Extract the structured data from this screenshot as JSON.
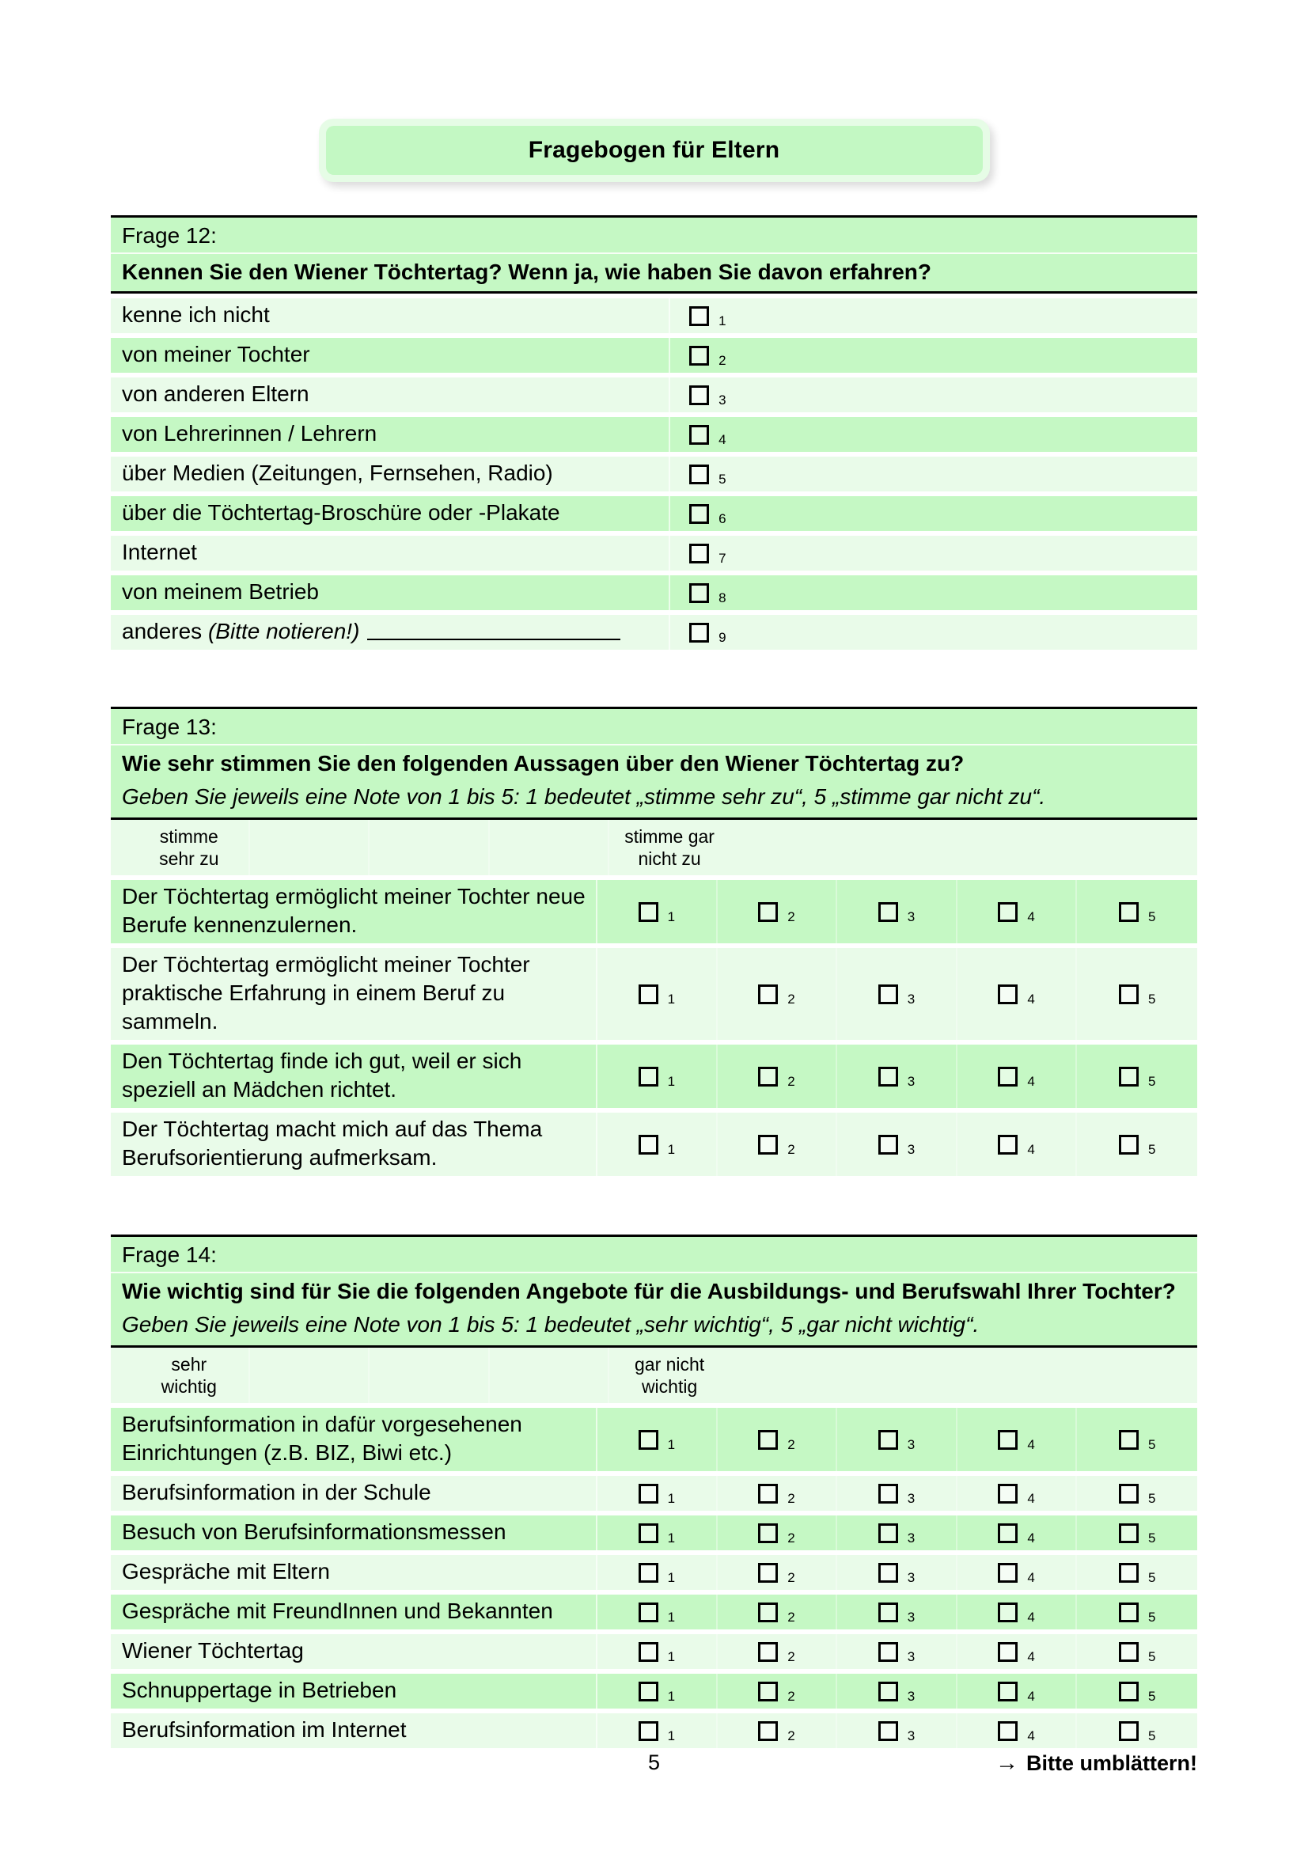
{
  "title": "Fragebogen für Eltern",
  "colors": {
    "row_dark": "#c5f8c4",
    "row_light": "#e9fbe9",
    "header_green": "#c5f8c4",
    "title_fill": "#c3f8c3",
    "title_ring": "#e6fce6",
    "rule_black": "#000000"
  },
  "frage12": {
    "label": "Frage 12:",
    "question": "Kennen Sie den Wiener Töchtertag? Wenn ja, wie haben Sie davon erfahren?",
    "first_shade": "light",
    "items": [
      {
        "text": "kenne ich nicht",
        "num": "1"
      },
      {
        "text": "von meiner Tochter",
        "num": "2"
      },
      {
        "text": "von anderen Eltern",
        "num": "3"
      },
      {
        "text": "von Lehrerinnen / Lehrern",
        "num": "4"
      },
      {
        "text": "über Medien (Zeitungen, Fernsehen, Radio)",
        "num": "5"
      },
      {
        "text": "über die Töchtertag-Broschüre oder -Plakate",
        "num": "6"
      },
      {
        "text": "Internet",
        "num": "7"
      },
      {
        "text": "von meinem Betrieb",
        "num": "8"
      },
      {
        "text": "anderes",
        "italic": "(Bitte notieren!)",
        "blank": true,
        "num": "9"
      }
    ]
  },
  "frage13": {
    "label": "Frage 13:",
    "question": "Wie sehr stimmen Sie den folgenden Aussagen über den Wiener Töchtertag zu?",
    "note": "Geben Sie jeweils eine Note von 1 bis 5: 1 bedeutet „stimme sehr zu“, 5 „stimme gar nicht zu“.",
    "scale_left": "stimme\nsehr zu",
    "scale_right": "stimme gar\nnicht zu",
    "scale_numbers": [
      "1",
      "2",
      "3",
      "4",
      "5"
    ],
    "first_shade": "dark",
    "items": [
      "Der Töchtertag ermöglicht meiner Tochter neue Berufe kennenzulernen.",
      "Der Töchtertag ermöglicht meiner Tochter praktische Erfahrung in einem Beruf zu sammeln.",
      "Den Töchtertag finde ich gut, weil er sich speziell an Mädchen richtet.",
      "Der Töchtertag macht mich auf das Thema Berufsorientierung aufmerksam."
    ]
  },
  "frage14": {
    "label": "Frage 14:",
    "question": "Wie wichtig sind für Sie die folgenden Angebote für die Ausbildungs- und Berufswahl Ihrer Tochter?",
    "note": "Geben Sie jeweils eine Note von 1 bis 5: 1 bedeutet „sehr wichtig“, 5 „gar nicht wichtig“.",
    "scale_left": "sehr\nwichtig",
    "scale_right": "gar nicht\nwichtig",
    "scale_numbers": [
      "1",
      "2",
      "3",
      "4",
      "5"
    ],
    "first_shade": "dark",
    "items": [
      "Berufsinformation in dafür vorgesehenen Einrichtungen (z.B. BIZ, Biwi etc.)",
      "Berufsinformation in der Schule",
      "Besuch von Berufsinformationsmessen",
      "Gespräche mit Eltern",
      "Gespräche mit FreundInnen und Bekannten",
      "Wiener Töchtertag",
      "Schnuppertage in Betrieben",
      "Berufsinformation im Internet"
    ]
  },
  "footer": {
    "page_number": "5",
    "arrow": "→",
    "hint": "Bitte umblättern!"
  }
}
